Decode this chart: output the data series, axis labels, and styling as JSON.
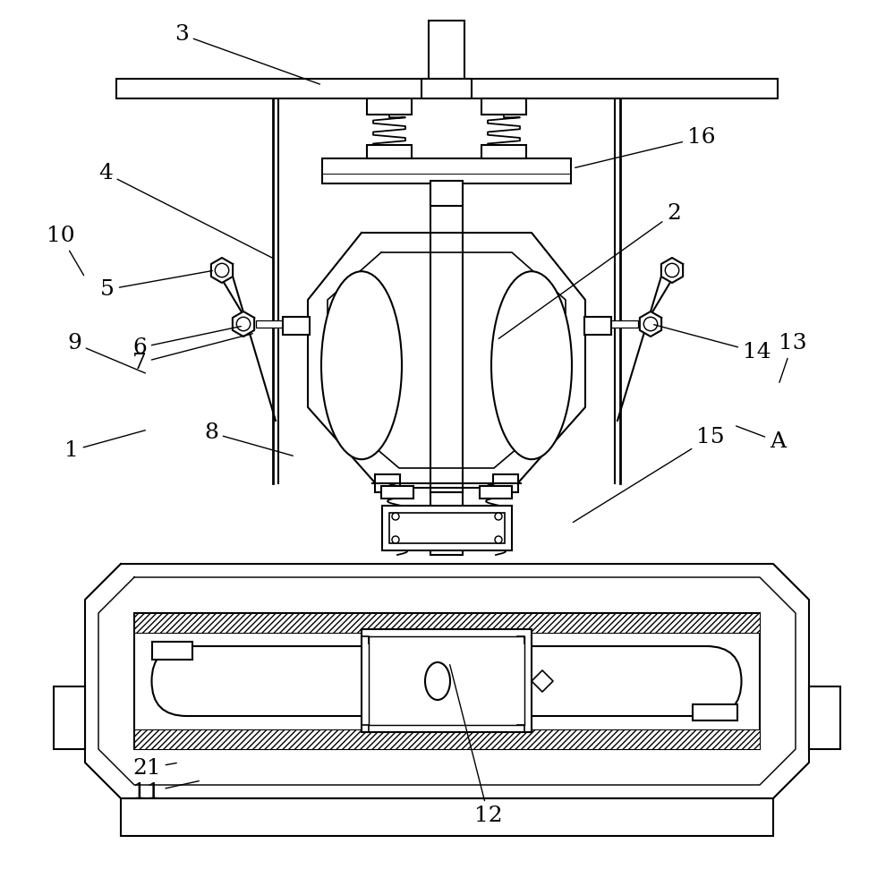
{
  "bg_color": "#ffffff",
  "line_color": "#000000",
  "line_width": 1.5
}
